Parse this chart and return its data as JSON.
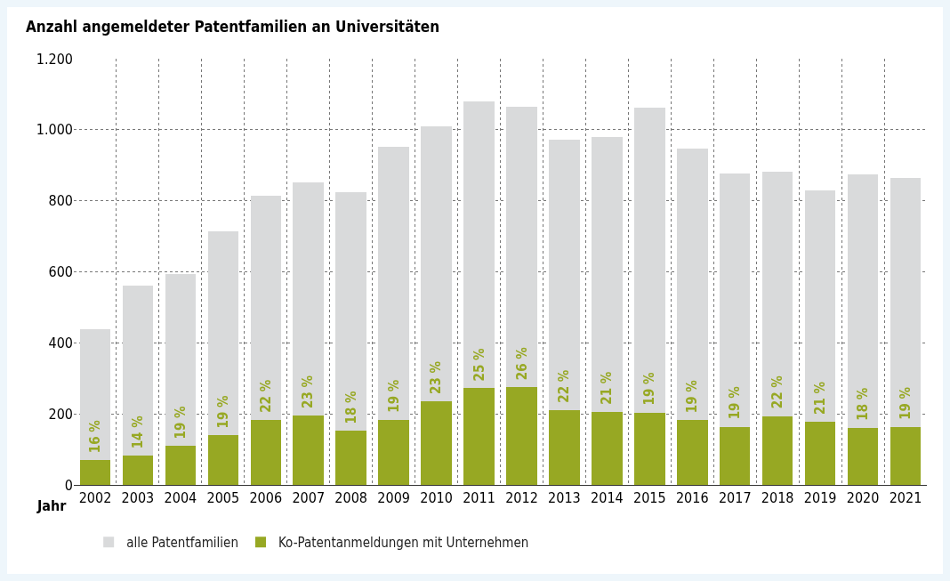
{
  "chart_data": {
    "type": "bar",
    "title": "Anzahl angemeldeter Patentfamilien an Universitäten",
    "xlabel": "Jahr",
    "categories": [
      "2002",
      "2003",
      "2004",
      "2005",
      "2006",
      "2007",
      "2008",
      "2009",
      "2010",
      "2011",
      "2012",
      "2013",
      "2014",
      "2015",
      "2016",
      "2017",
      "2018",
      "2019",
      "2020",
      "2021"
    ],
    "stacked": true,
    "series": [
      {
        "name": "Ko-Patentanmeldungen mit Unternehmen",
        "color": "#97a823",
        "values": [
          71,
          83,
          110,
          140,
          184,
          196,
          152,
          184,
          236,
          272,
          275,
          211,
          206,
          204,
          182,
          164,
          194,
          177,
          160,
          162
        ]
      },
      {
        "name": "alle Patentfamilien",
        "color": "#d9dadb",
        "values": [
          368,
          479,
          484,
          574,
          631,
          656,
          673,
          768,
          773,
          808,
          790,
          761,
          773,
          859,
          765,
          712,
          687,
          652,
          714,
          702
        ]
      }
    ],
    "ylim": [
      0,
      1200
    ],
    "yticks": [
      0,
      200,
      400,
      600,
      800,
      {
        "value": 1000,
        "label": "1.000"
      },
      {
        "value": 1200,
        "label": "1.200"
      }
    ],
    "grid": true,
    "legend": "bottom",
    "annotations": [
      {
        "text": "16 %",
        "x": "2002",
        "y": 71
      },
      {
        "text": "14 %",
        "x": "2003",
        "y": 83
      },
      {
        "text": "19 %",
        "x": "2004",
        "y": 110
      },
      {
        "text": "19 %",
        "x": "2005",
        "y": 140
      },
      {
        "text": "22 %",
        "x": "2006",
        "y": 184
      },
      {
        "text": "23 %",
        "x": "2007",
        "y": 196
      },
      {
        "text": "18 %",
        "x": "2008",
        "y": 152
      },
      {
        "text": "19 %",
        "x": "2009",
        "y": 184
      },
      {
        "text": "23 %",
        "x": "2010",
        "y": 236
      },
      {
        "text": "25 %",
        "x": "2011",
        "y": 272
      },
      {
        "text": "26 %",
        "x": "2012",
        "y": 275
      },
      {
        "text": "22 %",
        "x": "2013",
        "y": 211
      },
      {
        "text": "21 %",
        "x": "2014",
        "y": 206
      },
      {
        "text": "19 %",
        "x": "2015",
        "y": 204
      },
      {
        "text": "19 %",
        "x": "2016",
        "y": 182
      },
      {
        "text": "19 %",
        "x": "2017",
        "y": 164
      },
      {
        "text": "22 %",
        "x": "2018",
        "y": 194
      },
      {
        "text": "21 %",
        "x": "2019",
        "y": 177
      },
      {
        "text": "18 %",
        "x": "2020",
        "y": 160
      },
      {
        "text": "19 %",
        "x": "2021",
        "y": 162
      }
    ]
  }
}
